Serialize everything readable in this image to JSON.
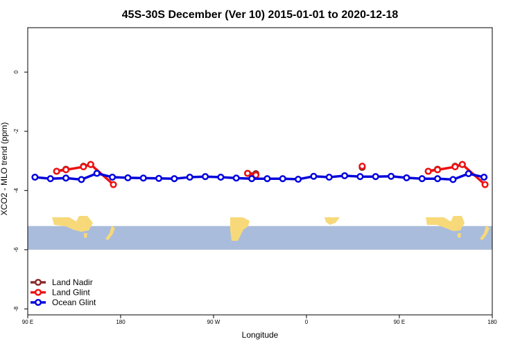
{
  "chart_data": {
    "type": "line",
    "title": "45S-30S December (Ver 10)   2015-01-01 to 2020-12-18",
    "xlabel": "Longitude",
    "ylabel": "XCO2 - MLO trend (ppm)",
    "xlim": [
      90,
      540
    ],
    "ylim": [
      -8.2,
      1.5
    ],
    "x_ticks": [
      {
        "value": 90,
        "label": "90 E"
      },
      {
        "value": 180,
        "label": "180"
      },
      {
        "value": 270,
        "label": "90 W"
      },
      {
        "value": 360,
        "label": "0"
      },
      {
        "value": 450,
        "label": "90 E"
      },
      {
        "value": 540,
        "label": "180"
      }
    ],
    "y_ticks": [
      {
        "value": 0,
        "label": "0"
      },
      {
        "value": -2,
        "label": "-2"
      },
      {
        "value": -4,
        "label": "-4"
      },
      {
        "value": -6,
        "label": "-6"
      },
      {
        "value": -8,
        "label": "-8"
      }
    ],
    "map_band": {
      "y_top": -5.2,
      "y_bottom": -6.0,
      "ocean_color": "#a9bcdb",
      "land_color": "#f7d97a"
    },
    "legend_position": "bottom-left",
    "series": [
      {
        "name": "Land Nadir",
        "color": "#8b2a2a",
        "segments": [
          [
            [
              118,
              -3.35
            ],
            [
              127,
              -3.28
            ]
          ],
          [
            [
              144,
              -3.18
            ],
            [
              151,
              -3.12
            ]
          ],
          [
            [
              303,
              -3.42
            ],
            [
              311,
              -3.43
            ]
          ],
          [
            [
              414,
              -3.22
            ]
          ],
          [
            [
              478,
              -3.35
            ],
            [
              487,
              -3.28
            ]
          ],
          [
            [
              504,
              -3.18
            ],
            [
              511,
              -3.12
            ]
          ]
        ]
      },
      {
        "name": "Land Glint",
        "color": "#ee1111",
        "segments": [
          [
            [
              118,
              -3.35
            ],
            [
              127,
              -3.3
            ],
            [
              144,
              -3.2
            ],
            [
              151,
              -3.12
            ],
            [
              173,
              -3.8
            ]
          ],
          [
            [
              303,
              -3.42
            ],
            [
              311,
              -3.48
            ]
          ],
          [
            [
              414,
              -3.18
            ]
          ],
          [
            [
              478,
              -3.35
            ],
            [
              487,
              -3.3
            ],
            [
              504,
              -3.2
            ],
            [
              511,
              -3.12
            ],
            [
              533,
              -3.8
            ]
          ]
        ]
      },
      {
        "name": "Ocean Glint",
        "color": "#0000dd",
        "segments": [
          [
            [
              97,
              -3.55
            ],
            [
              112,
              -3.6
            ],
            [
              127,
              -3.58
            ],
            [
              142,
              -3.63
            ],
            [
              157,
              -3.42
            ],
            [
              172,
              -3.55
            ],
            [
              187,
              -3.57
            ],
            [
              202,
              -3.58
            ],
            [
              217,
              -3.59
            ],
            [
              232,
              -3.6
            ],
            [
              247,
              -3.55
            ],
            [
              262,
              -3.53
            ],
            [
              277,
              -3.55
            ],
            [
              292,
              -3.58
            ],
            [
              307,
              -3.6
            ],
            [
              322,
              -3.6
            ],
            [
              337,
              -3.6
            ],
            [
              352,
              -3.62
            ],
            [
              367,
              -3.52
            ],
            [
              382,
              -3.55
            ],
            [
              397,
              -3.5
            ],
            [
              412,
              -3.53
            ],
            [
              427,
              -3.53
            ],
            [
              442,
              -3.52
            ],
            [
              457,
              -3.57
            ],
            [
              472,
              -3.6
            ],
            [
              487,
              -3.6
            ],
            [
              502,
              -3.63
            ],
            [
              517,
              -3.43
            ],
            [
              532,
              -3.55
            ]
          ]
        ]
      }
    ]
  }
}
